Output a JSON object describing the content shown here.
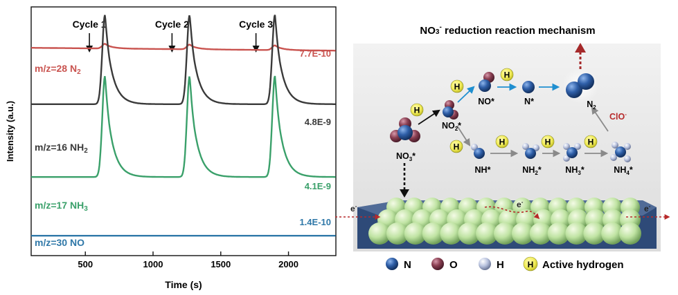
{
  "chart_data": {
    "type": "line",
    "xlabel": "Time (s)",
    "ylabel": "Intensity (a.u.)",
    "xlim": [
      100,
      2350
    ],
    "x_ticks": [
      "500",
      "1000",
      "1500",
      "2000"
    ],
    "cycles": [
      {
        "label": "Cycle 1",
        "x": 530
      },
      {
        "label": "Cycle 2",
        "x": 1140
      },
      {
        "label": "Cycle 3",
        "x": 1760
      }
    ],
    "series": [
      {
        "name": "m/z=28 N",
        "sub": "2",
        "scale": "7.7E-10",
        "color": "#c9534f",
        "baseline": 0.82,
        "peak": 0.02
      },
      {
        "name": "m/z=16 NH",
        "sub": "2",
        "scale": "4.8E-9",
        "color": "#3a3a3a",
        "baseline": 0.58,
        "peak": 0.38
      },
      {
        "name": "m/z=17 NH",
        "sub": "3",
        "scale": "4.1E-9",
        "color": "#3aa06a",
        "baseline": 0.27,
        "peak": 0.43
      },
      {
        "name": "m/z=30 NO",
        "sub": "",
        "scale": "1.4E-10",
        "color": "#2f78a8",
        "baseline": 0.02,
        "peak": 0.0
      }
    ],
    "peaks_x": [
      645,
      1270,
      1900
    ]
  },
  "mechanism": {
    "title_pre": "NO",
    "title_sub": "3",
    "title_sup": "-",
    "title_post": " reduction reaction mechanism",
    "hydrogen_letter": "H",
    "species": {
      "no3": {
        "base": "NO",
        "sub": "3",
        "post": "*"
      },
      "no2": {
        "base": "NO",
        "sub": "2",
        "post": "*"
      },
      "no": {
        "base": "NO",
        "sub": "",
        "post": "*"
      },
      "n": {
        "base": "N",
        "sub": "",
        "post": "*"
      },
      "n2": {
        "base": "N",
        "sub": "2",
        "post": ""
      },
      "nh": {
        "base": "NH",
        "sub": "",
        "post": "*"
      },
      "nh2": {
        "base": "NH",
        "sub": "2",
        "post": "*"
      },
      "nh3": {
        "base": "NH",
        "sub": "3",
        "post": "*"
      },
      "nh4": {
        "base": "NH",
        "sub": "4",
        "post": "*"
      }
    },
    "clo": {
      "base": "ClO",
      "sup": "-"
    },
    "electron": {
      "base": "e",
      "sup": "-"
    },
    "legend": [
      {
        "label": "N",
        "color": "#2f5fa8"
      },
      {
        "label": "O",
        "color": "#8a3f52"
      },
      {
        "label": "H",
        "color": "#b8c2de"
      }
    ],
    "active_label": "Active hydrogen"
  }
}
